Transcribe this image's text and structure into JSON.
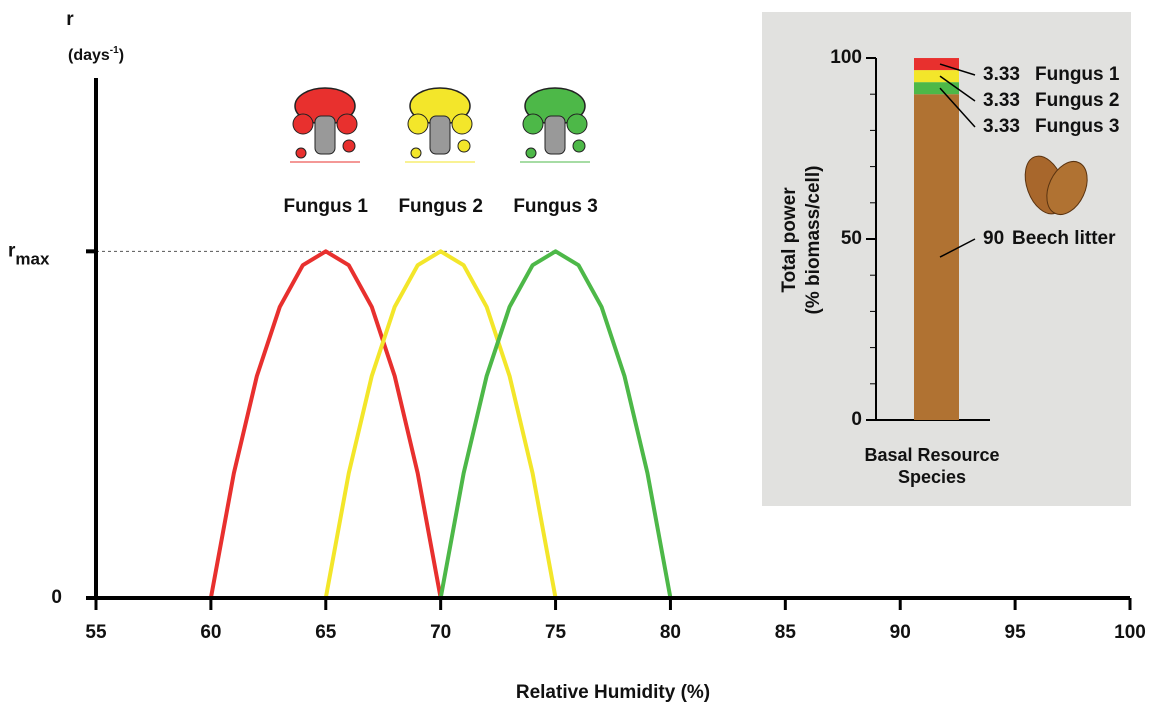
{
  "chart_data": [
    {
      "type": "line",
      "xlabel": "Relative Humidity (%)",
      "ylabel": "r",
      "ylabel_unit": "(days-1)",
      "xlim": [
        55,
        100
      ],
      "xticks": [
        55,
        60,
        65,
        70,
        75,
        80,
        85,
        90,
        95,
        100
      ],
      "ylim": [
        0,
        1.5
      ],
      "yticks": [
        0,
        {
          "value": 1,
          "label": "rmax"
        }
      ],
      "series": [
        {
          "name": "Fungus 1",
          "color": "#e8302e",
          "x": [
            60,
            61,
            62,
            63,
            64,
            65,
            66,
            67,
            68,
            69,
            70
          ],
          "values": [
            0,
            0.36,
            0.64,
            0.84,
            0.96,
            1,
            0.96,
            0.84,
            0.64,
            0.36,
            0
          ]
        },
        {
          "name": "Fungus 2",
          "color": "#f3e62a",
          "x": [
            65,
            66,
            67,
            68,
            69,
            70,
            71,
            72,
            73,
            74,
            75
          ],
          "values": [
            0,
            0.36,
            0.64,
            0.84,
            0.96,
            1,
            0.96,
            0.84,
            0.64,
            0.36,
            0
          ]
        },
        {
          "name": "Fungus 3",
          "color": "#4db848",
          "x": [
            70,
            71,
            72,
            73,
            74,
            75,
            76,
            77,
            78,
            79,
            80
          ],
          "values": [
            0,
            0.36,
            0.64,
            0.84,
            0.96,
            1,
            0.96,
            0.84,
            0.64,
            0.36,
            0
          ]
        }
      ]
    },
    {
      "type": "bar",
      "stacked": true,
      "categories": [
        "Basal Resource Species"
      ],
      "ylabel": [
        "Total power",
        "(% biomass/cell)"
      ],
      "ylim": [
        0,
        100
      ],
      "yticks": [
        0,
        50,
        100
      ],
      "minor_yticks": [
        10,
        20,
        30,
        40,
        60,
        70,
        80,
        90
      ],
      "series": [
        {
          "name": "Beech litter",
          "color": "#b07232",
          "values": [
            90
          ]
        },
        {
          "name": "Fungus 3",
          "color": "#4db848",
          "values": [
            3.33
          ]
        },
        {
          "name": "Fungus 2",
          "color": "#f3e62a",
          "values": [
            3.33
          ]
        },
        {
          "name": "Fungus 1",
          "color": "#e8302e",
          "values": [
            3.33
          ]
        }
      ]
    }
  ]
}
